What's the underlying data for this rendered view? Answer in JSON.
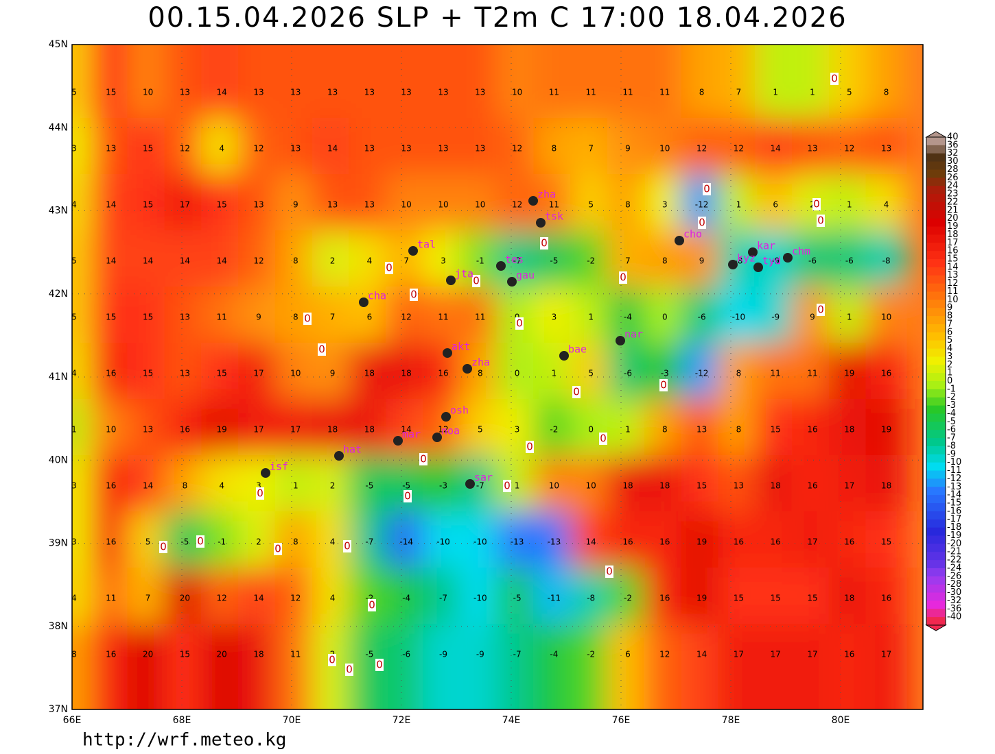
{
  "title": "00.15.04.2026 SLP + T2m C 17:00 18.04.2026",
  "footer": "http://wrf.meteo.kg",
  "lat_labels": [
    "45N",
    "44N",
    "43N",
    "42N",
    "41N",
    "40N",
    "39N",
    "38N",
    "37N"
  ],
  "lon_labels": [
    "66E",
    "68E",
    "70E",
    "72E",
    "74E",
    "76E",
    "78E",
    "80E"
  ],
  "contour_label": "0",
  "colorbar_labels": [
    40,
    36,
    32,
    30,
    28,
    26,
    24,
    23,
    22,
    21,
    20,
    19,
    18,
    17,
    16,
    15,
    14,
    13,
    12,
    11,
    10,
    9,
    8,
    7,
    6,
    5,
    4,
    3,
    2,
    1,
    0,
    -1,
    -2,
    -3,
    -4,
    -5,
    -6,
    -7,
    -8,
    -9,
    -10,
    -11,
    -12,
    -13,
    -14,
    -15,
    -16,
    -17,
    -18,
    -19,
    -20,
    -21,
    -22,
    -24,
    -26,
    -28,
    -30,
    -32,
    -36,
    -40
  ],
  "stations": [
    "zha",
    "tsk",
    "tal",
    "tes",
    "jta",
    "gau",
    "cha",
    "akt",
    "zha",
    "bae",
    "nar",
    "cho",
    "kar",
    "kyz",
    "tyd",
    "chm",
    "osh",
    "mar",
    "noa",
    "hat",
    "isf",
    "sar"
  ],
  "grid_values": [
    [
      5,
      15,
      10,
      13,
      14,
      13,
      13,
      13,
      13,
      13,
      13,
      13,
      10,
      11,
      11,
      11,
      11,
      8,
      7,
      1,
      1,
      5,
      8
    ],
    [
      3,
      13,
      15,
      12,
      4,
      12,
      13,
      14,
      13,
      13,
      13,
      13,
      12,
      8,
      7,
      9,
      10,
      12,
      12,
      14,
      13,
      12,
      13
    ],
    [
      4,
      14,
      15,
      17,
      15,
      13,
      9,
      13,
      13,
      10,
      10,
      10,
      12,
      11,
      5,
      8,
      3,
      -12,
      1,
      6,
      2,
      1,
      4
    ],
    [
      5,
      14,
      14,
      14,
      14,
      12,
      8,
      2,
      4,
      7,
      3,
      -1,
      -7,
      -5,
      -2,
      7,
      8,
      9,
      -8,
      -9,
      -6,
      -6,
      -8
    ],
    [
      5,
      15,
      15,
      13,
      11,
      9,
      8,
      7,
      6,
      12,
      11,
      11,
      0,
      3,
      1,
      -4,
      0,
      -6,
      -10,
      -9,
      9,
      1,
      10
    ],
    [
      4,
      16,
      15,
      13,
      15,
      17,
      10,
      9,
      18,
      18,
      16,
      8,
      0,
      1,
      5,
      -6,
      -3,
      -12,
      8,
      11,
      11,
      19,
      16
    ],
    [
      1,
      10,
      13,
      16,
      19,
      17,
      17,
      18,
      18,
      14,
      12,
      5,
      3,
      -2,
      0,
      1,
      8,
      13,
      8,
      15,
      16,
      18,
      19
    ],
    [
      3,
      16,
      14,
      8,
      4,
      3,
      1,
      2,
      -5,
      -5,
      -3,
      -7,
      1,
      10,
      10,
      18,
      18,
      15,
      13,
      18,
      16,
      17,
      18
    ],
    [
      3,
      16,
      5,
      -5,
      -1,
      2,
      8,
      4,
      -7,
      -14,
      -10,
      -10,
      -13,
      -13,
      14,
      16,
      16,
      19,
      16,
      16,
      17,
      16,
      15
    ],
    [
      4,
      11,
      7,
      20,
      12,
      14,
      12,
      4,
      -2,
      -4,
      -7,
      -10,
      -5,
      -11,
      -8,
      -2,
      16,
      19,
      15,
      15,
      15,
      18,
      16
    ],
    [
      8,
      16,
      20,
      15,
      20,
      18,
      11,
      2,
      -5,
      -6,
      -9,
      -9,
      -7,
      -4,
      -2,
      6,
      12,
      14,
      17,
      17,
      17,
      16,
      17
    ]
  ]
}
